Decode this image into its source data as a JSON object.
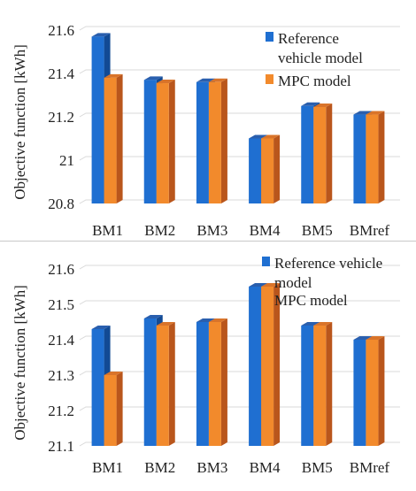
{
  "chart_data": [
    {
      "type": "bar",
      "categories": [
        "BM1",
        "BM2",
        "BM3",
        "BM4",
        "BM5",
        "BMref"
      ],
      "series": [
        {
          "name": "Reference vehicle model",
          "values": [
            21.57,
            21.37,
            21.36,
            21.1,
            21.25,
            21.21
          ]
        },
        {
          "name": "MPC model",
          "values": [
            21.38,
            21.355,
            21.36,
            21.1,
            21.245,
            21.21
          ]
        }
      ],
      "ylabel": "Objective function [kWh]",
      "ylim": [
        20.8,
        21.6
      ],
      "yticks": [
        "20.8",
        "21",
        "21.2",
        "21.4",
        "21.6"
      ],
      "legend_lines": [
        [
          "Reference",
          "vehicle model"
        ],
        [
          "MPC model"
        ]
      ],
      "legend_position": "top-right",
      "grid": true
    },
    {
      "type": "bar",
      "categories": [
        "BM1",
        "BM2",
        "BM3",
        "BM4",
        "BM5",
        "BMref"
      ],
      "series": [
        {
          "name": "Reference vehicle model",
          "values": [
            21.43,
            21.46,
            21.45,
            21.55,
            21.44,
            21.4
          ]
        },
        {
          "name": "MPC model",
          "values": [
            21.3,
            21.44,
            21.45,
            21.55,
            21.44,
            21.4
          ]
        }
      ],
      "ylabel": "Objective function [kWh]",
      "ylim": [
        21.1,
        21.6
      ],
      "yticks": [
        "21.1",
        "21.2",
        "21.3",
        "21.4",
        "21.5",
        "21.6"
      ],
      "legend_lines": [
        [
          "Reference vehicle",
          "model"
        ],
        [
          "MPC model"
        ]
      ],
      "legend_position": "top-right",
      "grid": true
    }
  ],
  "colors": {
    "reference_front": "#1f6fd1",
    "reference_side": "#124a94",
    "reference_top": "#2a5fae",
    "mpc_front": "#f28a2c",
    "mpc_side": "#b9561c",
    "mpc_top": "#d9742a",
    "grid": "#d9d9d9"
  }
}
